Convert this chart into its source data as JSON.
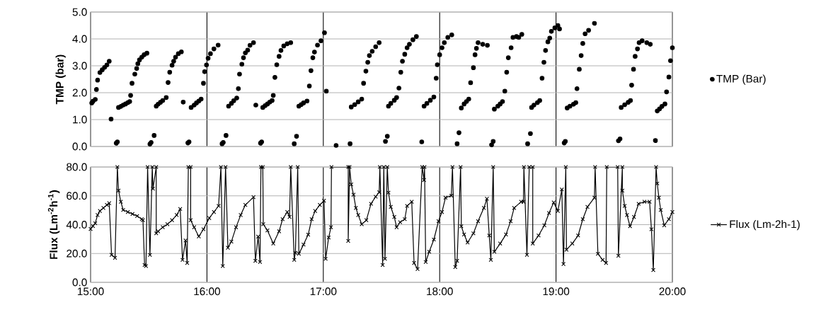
{
  "chart_data": [
    {
      "type": "scatter",
      "ylabel": "TMP (bar)",
      "xlim": [
        15,
        20
      ],
      "xticks": [
        {
          "value": 15,
          "label": null
        },
        {
          "value": 16,
          "label": null
        },
        {
          "value": 17,
          "label": null
        },
        {
          "value": 18,
          "label": null
        },
        {
          "value": 19,
          "label": null
        },
        {
          "value": 20,
          "label": null
        }
      ],
      "ylim": [
        0,
        5
      ],
      "yticks": [
        {
          "value": 0,
          "label": "0.0"
        },
        {
          "value": 1,
          "label": "1.0"
        },
        {
          "value": 2,
          "label": "2.0"
        },
        {
          "value": 3,
          "label": "3.0"
        },
        {
          "value": 4,
          "label": "4.0"
        },
        {
          "value": 5,
          "label": "5.0"
        }
      ],
      "grid": true,
      "legend": "right",
      "tick_labels": "y",
      "marker": "circle",
      "series": [
        {
          "name": "TMP (Bar)",
          "color": "#000000",
          "x": [
            15.01,
            15.02,
            15.04,
            15.05,
            15.06,
            15.08,
            15.1,
            15.12,
            15.14,
            15.16,
            15.176,
            15.22,
            15.23,
            15.24,
            15.26,
            15.28,
            15.3,
            15.32,
            15.336,
            15.344,
            15.356,
            15.38,
            15.396,
            15.406,
            15.42,
            15.44,
            15.46,
            15.484,
            15.51,
            15.52,
            15.546,
            15.564,
            15.58,
            15.6,
            15.62,
            15.65,
            15.666,
            15.68,
            15.7,
            15.714,
            15.73,
            15.754,
            15.78,
            15.796,
            15.836,
            15.846,
            15.864,
            15.89,
            15.91,
            15.93,
            15.95,
            15.97,
            15.98,
            15.996,
            16.01,
            16.03,
            16.06,
            16.096,
            16.13,
            16.14,
            16.164,
            16.186,
            16.21,
            16.23,
            16.256,
            16.27,
            16.28,
            16.3,
            16.314,
            16.33,
            16.35,
            16.37,
            16.4,
            16.42,
            16.46,
            16.47,
            16.48,
            16.5,
            16.52,
            16.54,
            16.56,
            16.57,
            16.584,
            16.6,
            16.62,
            16.636,
            16.66,
            16.69,
            16.72,
            16.75,
            16.77,
            16.79,
            16.81,
            16.83,
            16.86,
            16.88,
            16.894,
            16.91,
            16.924,
            16.95,
            16.98,
            17.01,
            17.026,
            17.11,
            17.23,
            17.24,
            17.27,
            17.3,
            17.33,
            17.346,
            17.366,
            17.382,
            17.396,
            17.42,
            17.45,
            17.48,
            17.534,
            17.55,
            17.56,
            17.58,
            17.61,
            17.63,
            17.65,
            17.666,
            17.68,
            17.7,
            17.72,
            17.74,
            17.77,
            17.8,
            17.846,
            17.866,
            17.89,
            17.92,
            17.95,
            17.97,
            17.98,
            18.0,
            18.02,
            18.04,
            18.07,
            18.104,
            18.15,
            18.166,
            18.186,
            18.21,
            18.23,
            18.25,
            18.266,
            18.29,
            18.304,
            18.316,
            18.33,
            18.37,
            18.41,
            18.446,
            18.46,
            18.47,
            18.5,
            18.52,
            18.54,
            18.56,
            18.576,
            18.59,
            18.614,
            18.63,
            18.66,
            18.68,
            18.706,
            18.756,
            18.78,
            18.79,
            18.81,
            18.84,
            18.86,
            18.88,
            18.896,
            18.91,
            18.93,
            18.946,
            18.96,
            18.99,
            19.016,
            19.03,
            19.07,
            19.08,
            19.096,
            19.12,
            19.15,
            19.17,
            19.18,
            19.2,
            19.216,
            19.23,
            19.25,
            19.28,
            19.33,
            19.536,
            19.55,
            19.56,
            19.59,
            19.62,
            19.64,
            19.65,
            19.666,
            19.68,
            19.7,
            19.714,
            19.74,
            19.78,
            19.81,
            19.854,
            19.87,
            19.89,
            19.91,
            19.936,
            19.95,
            19.97,
            19.984,
            20.0
          ],
          "values": [
            1.62,
            1.68,
            1.75,
            2.12,
            2.47,
            2.75,
            2.85,
            2.94,
            3.03,
            3.17,
            1.02,
            0.12,
            0.17,
            1.45,
            1.49,
            1.54,
            1.58,
            1.63,
            1.67,
            1.9,
            2.35,
            2.69,
            2.9,
            3.08,
            3.22,
            3.32,
            3.41,
            3.47,
            0.09,
            0.15,
            0.41,
            1.5,
            1.57,
            1.64,
            1.71,
            1.82,
            2.38,
            2.76,
            3.02,
            3.17,
            3.32,
            3.45,
            3.52,
            1.65,
            0.13,
            0.17,
            1.45,
            1.54,
            1.62,
            1.69,
            1.76,
            2.35,
            2.78,
            3.03,
            3.28,
            3.45,
            3.63,
            3.77,
            0.1,
            0.15,
            0.41,
            1.5,
            1.6,
            1.7,
            1.8,
            2.15,
            2.69,
            3.06,
            3.3,
            3.48,
            3.58,
            3.76,
            3.86,
            1.54,
            0.12,
            0.17,
            1.45,
            1.52,
            1.58,
            1.65,
            1.71,
            1.9,
            2.57,
            3.04,
            3.35,
            3.57,
            3.74,
            3.82,
            3.86,
            0.1,
            0.38,
            1.5,
            1.56,
            1.62,
            1.69,
            2.25,
            2.82,
            3.3,
            3.51,
            3.77,
            3.93,
            4.23,
            2.06,
            0.04,
            0.1,
            1.47,
            1.56,
            1.66,
            1.76,
            2.35,
            2.8,
            3.13,
            3.38,
            3.54,
            3.71,
            3.86,
            0.19,
            0.38,
            1.5,
            1.6,
            1.72,
            1.82,
            2.17,
            2.76,
            3.17,
            3.43,
            3.67,
            3.8,
            3.97,
            4.09,
            0.17,
            1.5,
            1.6,
            1.72,
            1.84,
            2.54,
            3.04,
            3.41,
            3.67,
            3.86,
            4.06,
            4.15,
            0.1,
            0.51,
            1.43,
            1.58,
            1.67,
            1.76,
            2.37,
            2.93,
            3.41,
            3.65,
            3.86,
            3.8,
            3.76,
            0.06,
            0.19,
            1.39,
            1.5,
            1.58,
            1.67,
            2.06,
            2.76,
            3.3,
            3.67,
            4.06,
            4.09,
            4.06,
            4.17,
            0.1,
            0.48,
            1.45,
            1.54,
            1.63,
            1.71,
            2.54,
            3.13,
            3.57,
            3.89,
            4.03,
            4.28,
            4.41,
            4.5,
            4.37,
            0.13,
            0.19,
            1.43,
            1.5,
            1.57,
            1.63,
            2.15,
            2.87,
            3.38,
            3.83,
            4.19,
            4.32,
            4.58,
            0.21,
            0.28,
            1.45,
            1.55,
            1.64,
            1.71,
            2.28,
            2.87,
            3.35,
            3.63,
            3.86,
            3.93,
            3.86,
            3.8,
            0.22,
            1.32,
            1.4,
            1.49,
            1.58,
            2.03,
            2.58,
            3.19,
            3.67
          ]
        }
      ]
    },
    {
      "type": "line",
      "ylabel": "Flux (Lm$^{-2}$h$^{-1}$)",
      "xlim": [
        15,
        20
      ],
      "xticks": [
        {
          "value": 15,
          "label": "15:00"
        },
        {
          "value": 16,
          "label": "16:00"
        },
        {
          "value": 17,
          "label": "17:00"
        },
        {
          "value": 18,
          "label": "18:00"
        },
        {
          "value": 19,
          "label": "19:00"
        },
        {
          "value": 20,
          "label": "20:00"
        }
      ],
      "ylim": [
        0,
        80
      ],
      "yticks": [
        {
          "value": 0,
          "label": "0.0"
        },
        {
          "value": 20,
          "label": "20.0"
        },
        {
          "value": 40,
          "label": "40.0"
        },
        {
          "value": 60,
          "label": "60.0"
        },
        {
          "value": 80,
          "label": "80.0"
        }
      ],
      "grid": true,
      "legend": "right",
      "marker": "cross",
      "line_style": "solid",
      "series": [
        {
          "name": "Flux (Lm-2h-1)",
          "color": "#000000",
          "x": [
            15.0,
            15.02,
            15.04,
            15.06,
            15.08,
            15.11,
            15.14,
            15.16,
            15.18,
            15.21,
            15.23,
            15.24,
            15.26,
            15.28,
            15.32,
            15.36,
            15.4,
            15.44,
            15.45,
            15.464,
            15.476,
            15.49,
            15.51,
            15.53,
            15.536,
            15.564,
            15.564,
            15.58,
            15.62,
            15.66,
            15.7,
            15.74,
            15.77,
            15.79,
            15.816,
            15.83,
            15.84,
            15.86,
            15.86,
            15.89,
            15.93,
            15.97,
            16.02,
            16.06,
            16.1,
            16.12,
            16.136,
            16.16,
            16.18,
            16.21,
            16.25,
            16.29,
            16.33,
            16.4,
            16.416,
            16.44,
            16.456,
            16.464,
            16.48,
            16.484,
            16.52,
            16.57,
            16.62,
            16.65,
            16.69,
            16.71,
            16.72,
            16.75,
            16.76,
            16.78,
            16.79,
            16.83,
            16.87,
            16.9,
            16.93,
            16.97,
            17.006,
            17.02,
            17.046,
            17.066,
            17.07,
            17.214,
            17.214,
            17.226,
            17.24,
            17.26,
            17.28,
            17.3,
            17.33,
            17.37,
            17.41,
            17.45,
            17.48,
            17.486,
            17.51,
            17.52,
            17.53,
            17.55,
            17.56,
            17.58,
            17.61,
            17.63,
            17.66,
            17.7,
            17.72,
            17.76,
            17.78,
            17.81,
            17.85,
            17.866,
            17.87,
            17.88,
            17.91,
            17.95,
            17.99,
            18.02,
            18.05,
            18.1,
            18.11,
            18.134,
            18.15,
            18.18,
            18.186,
            18.21,
            18.24,
            18.29,
            18.33,
            18.38,
            18.406,
            18.426,
            18.44,
            18.46,
            18.47,
            18.52,
            18.57,
            18.61,
            18.64,
            18.7,
            18.72,
            18.724,
            18.75,
            18.77,
            18.8,
            18.8,
            18.85,
            18.9,
            18.94,
            18.98,
            19.016,
            19.05,
            19.064,
            19.084,
            19.09,
            19.14,
            19.19,
            19.23,
            19.27,
            19.33,
            19.336,
            19.36,
            19.4,
            19.43,
            19.436,
            19.53,
            19.536,
            19.57,
            19.57,
            19.59,
            19.61,
            19.636,
            19.67,
            19.71,
            19.76,
            19.804,
            19.82,
            19.836,
            19.86,
            19.87,
            19.884,
            19.9,
            19.93,
            19.97,
            20.0
          ],
          "values": [
            37,
            39,
            41,
            46.7,
            49.5,
            51.6,
            53.7,
            54.9,
            19.1,
            17,
            80,
            63.6,
            55.9,
            50.2,
            48.8,
            47.4,
            46,
            43.8,
            43.1,
            12,
            11.3,
            80,
            19,
            80,
            65,
            80,
            34,
            35.4,
            38.2,
            40.3,
            43.1,
            46.7,
            50.9,
            15.6,
            29,
            13.4,
            80,
            80,
            43.1,
            38.2,
            31.8,
            36.8,
            44.6,
            48.8,
            53,
            80,
            11.3,
            80,
            24,
            28.3,
            38.2,
            46.7,
            53.7,
            59.1,
            14.9,
            31.7,
            14.1,
            80,
            80,
            40.3,
            36,
            26.9,
            35.4,
            43.8,
            48.8,
            45.3,
            80,
            15.6,
            20.5,
            80,
            19.8,
            26.2,
            33.1,
            43.8,
            49.5,
            53.7,
            56.6,
            16.3,
            31.1,
            38.2,
            80,
            80,
            28.7,
            80,
            67.9,
            60.8,
            51.6,
            46.7,
            40.3,
            43.1,
            54.5,
            59.4,
            62.5,
            80,
            12,
            80,
            16.3,
            80,
            62.2,
            52.3,
            45.3,
            38.2,
            41.7,
            43.8,
            53,
            55.9,
            13.4,
            9.2,
            80,
            71,
            80,
            14.1,
            21.2,
            29.7,
            42.4,
            48.8,
            58.7,
            60.1,
            80,
            10.6,
            14.9,
            80,
            38.9,
            33.2,
            27.6,
            34,
            42.4,
            51.6,
            58,
            32.5,
            15.6,
            80,
            21.2,
            26.9,
            33.2,
            42.4,
            51.6,
            55.9,
            55.9,
            80,
            19.1,
            80,
            80,
            26.9,
            32.5,
            39.6,
            48.1,
            55.4,
            49.5,
            64.4,
            12.7,
            80,
            22.6,
            26.9,
            32.5,
            43.8,
            52.3,
            58.7,
            80,
            19.8,
            15.6,
            13.4,
            80,
            80,
            18.4,
            80,
            63.6,
            53,
            46.7,
            38.9,
            45.3,
            54.5,
            55.9,
            55.9,
            36.8,
            8.5,
            80,
            68.6,
            58.7,
            50.2,
            39.6,
            43.8,
            48.8
          ]
        }
      ]
    }
  ]
}
